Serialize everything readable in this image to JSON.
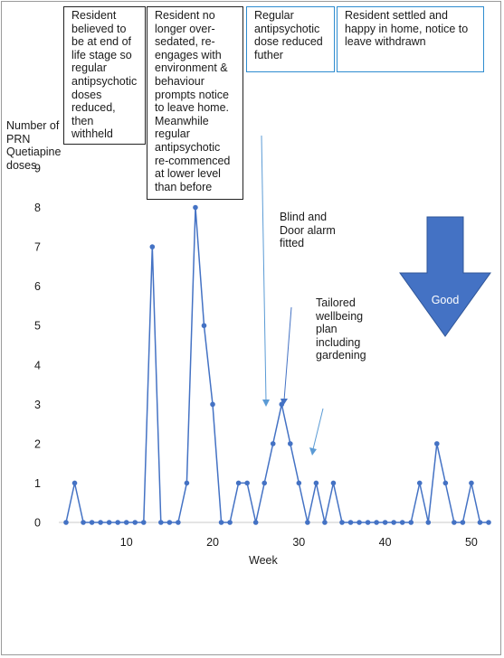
{
  "chart_data": {
    "type": "line",
    "ylabel": "Number of\nPRN\nQuetiapine\ndoses",
    "xlabel": "Week",
    "xlim": [
      3,
      52
    ],
    "ylim": [
      0,
      9
    ],
    "xticks": [
      10,
      20,
      30,
      40,
      50
    ],
    "yticks": [
      0,
      1,
      2,
      3,
      4,
      5,
      6,
      7,
      8,
      9
    ],
    "grid": false,
    "series_color": "#4472c4",
    "x": [
      3,
      4,
      5,
      6,
      7,
      8,
      9,
      10,
      11,
      12,
      13,
      14,
      15,
      16,
      17,
      18,
      19,
      20,
      21,
      22,
      23,
      24,
      25,
      26,
      27,
      28,
      29,
      30,
      31,
      32,
      33,
      34,
      35,
      36,
      37,
      38,
      39,
      40,
      41,
      42,
      43,
      44,
      45,
      46,
      47,
      48,
      49,
      50,
      51,
      52
    ],
    "values": [
      0,
      1,
      0,
      0,
      0,
      0,
      0,
      0,
      0,
      0,
      7,
      0,
      0,
      0,
      1,
      8,
      5,
      3,
      0,
      0,
      1,
      1,
      0,
      1,
      2,
      3,
      2,
      1,
      0,
      1,
      0,
      1,
      0,
      0,
      0,
      0,
      0,
      0,
      0,
      0,
      0,
      1,
      0,
      2,
      1,
      0,
      0,
      1,
      0,
      0
    ],
    "annotations": [
      {
        "id": "box1",
        "text": "Resident\nbelieved to\nbe at end of\nlife stage so\nregular\nantipsychotic\ndoses\nreduced,\nthen\nwithheld"
      },
      {
        "id": "box2",
        "text": "Resident no\nlonger over-\nsedated, re-\nengages with\nenvironment &\nbehaviour\nprompts notice\nto leave home.\nMeanwhile\nregular\nantipsychotic\nre-commenced\nat lower level\nthan before"
      },
      {
        "id": "box3",
        "text": "Regular\nantipsychotic\ndose reduced\nfuther"
      },
      {
        "id": "box4",
        "text": "Resident settled and\nhappy in home, notice to\nleave withdrawn"
      },
      {
        "id": "ann1",
        "text": "Blind and\nDoor alarm\nfitted"
      },
      {
        "id": "ann2",
        "text": "Tailored\nwellbeing\nplan\nincluding\ngardening"
      },
      {
        "id": "good",
        "text": "Good"
      }
    ]
  }
}
